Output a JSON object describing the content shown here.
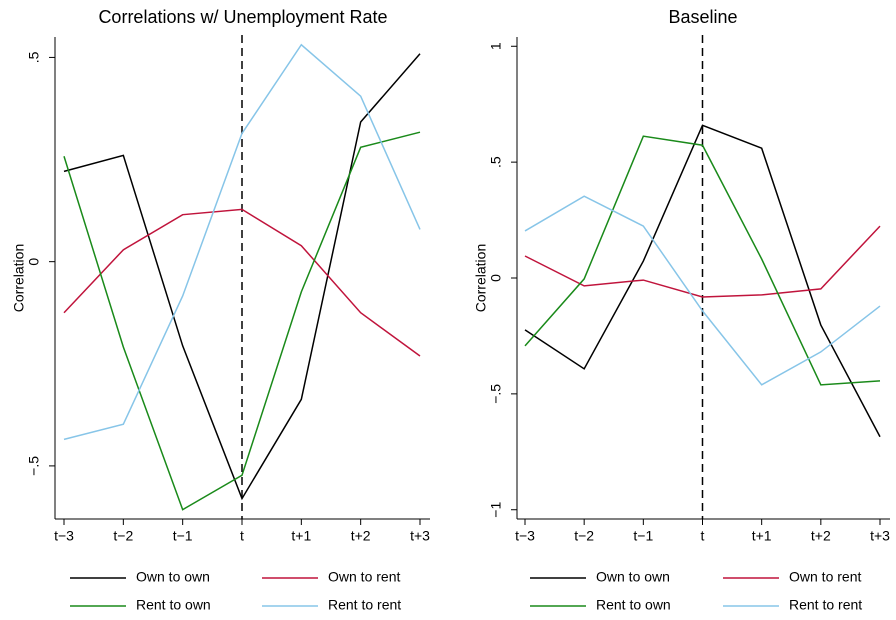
{
  "chart_data": [
    {
      "type": "line",
      "title": "Correlations w/ Unemployment Rate",
      "y_label": "Correlation",
      "categories": [
        "t−3",
        "t−2",
        "t−1",
        "t",
        "t+1",
        "t+2",
        "t+3"
      ],
      "vline": "t",
      "ylim": [
        -0.63,
        0.55
      ],
      "yticks": [
        {
          "value": -0.5,
          "label": "−.5"
        },
        0,
        {
          "value": 0.5,
          "label": ".5"
        }
      ],
      "series": [
        {
          "name": "Own to own",
          "color": "#000000",
          "values": [
            0.221,
            0.26,
            -0.206,
            -0.58,
            -0.337,
            0.342,
            0.509
          ]
        },
        {
          "name": "Own to rent",
          "color": "#c0143c",
          "values": [
            -0.125,
            0.029,
            0.115,
            0.128,
            0.039,
            -0.125,
            -0.231
          ]
        },
        {
          "name": "Rent to own",
          "color": "#1a8a1a",
          "values": [
            0.258,
            -0.209,
            -0.607,
            -0.523,
            -0.074,
            0.28,
            0.317
          ]
        },
        {
          "name": "Rent to rent",
          "color": "#87c5e8",
          "values": [
            -0.435,
            -0.398,
            -0.084,
            0.314,
            0.531,
            0.405,
            0.079
          ]
        }
      ]
    },
    {
      "type": "line",
      "title": "Baseline",
      "y_label": "Correlation",
      "categories": [
        "t−3",
        "t−2",
        "t−1",
        "t",
        "t+1",
        "t+2",
        "t+3"
      ],
      "vline": "t",
      "ylim": [
        -1.04,
        1.04
      ],
      "yticks": [
        {
          "value": -1,
          "label": "−1"
        },
        {
          "value": -0.5,
          "label": "−.5"
        },
        0,
        {
          "value": 0.5,
          "label": ".5"
        },
        1
      ],
      "series": [
        {
          "name": "Own to own",
          "color": "#000000",
          "values": [
            -0.224,
            -0.392,
            0.073,
            0.659,
            0.56,
            -0.203,
            -0.685
          ]
        },
        {
          "name": "Own to rent",
          "color": "#c0143c",
          "values": [
            0.095,
            -0.034,
            -0.009,
            -0.082,
            -0.073,
            -0.047,
            0.224
          ]
        },
        {
          "name": "Rent to own",
          "color": "#1a8a1a",
          "values": [
            -0.293,
            -0.004,
            0.612,
            0.573,
            0.082,
            -0.461,
            -0.444
          ]
        },
        {
          "name": "Rent to rent",
          "color": "#87c5e8",
          "values": [
            0.203,
            0.353,
            0.224,
            -0.142,
            -0.461,
            -0.319,
            -0.121
          ]
        }
      ]
    }
  ]
}
